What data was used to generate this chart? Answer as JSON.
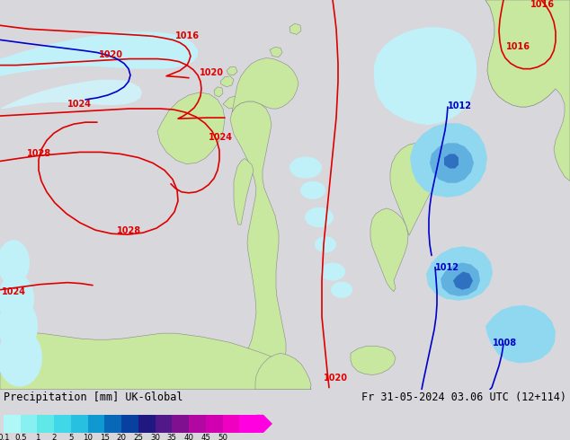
{
  "title_left": "Precipitation [mm] UK-Global",
  "title_right": "Fr 31-05-2024 03.06 UTC (12+114)",
  "bg_color": "#d8d8dc",
  "land_color": "#c8e8a0",
  "land_edge": "#888888",
  "isobar_red": "#dd0000",
  "isobar_blue": "#0000cc",
  "precip_vlight": "#c0f0f8",
  "precip_light": "#90d8f0",
  "precip_med": "#60b0e0",
  "precip_dark": "#3070c0",
  "precip_vdark": "#1030a0",
  "bottom_bg": "#e0e0e8",
  "figure_bg": "#d8d8dc",
  "cbar_colors": [
    "#b0f8f8",
    "#88f0f0",
    "#60e8e8",
    "#40d8e8",
    "#28c0e0",
    "#1098d0",
    "#0868b8",
    "#0840a0",
    "#201880",
    "#501888",
    "#801090",
    "#b008a0",
    "#d000b0",
    "#f000c0",
    "#ff00e0"
  ],
  "cbar_labels": [
    "0.1",
    "0.5",
    "1",
    "2",
    "5",
    "10",
    "15",
    "20",
    "25",
    "30",
    "35",
    "40",
    "45",
    "50"
  ]
}
